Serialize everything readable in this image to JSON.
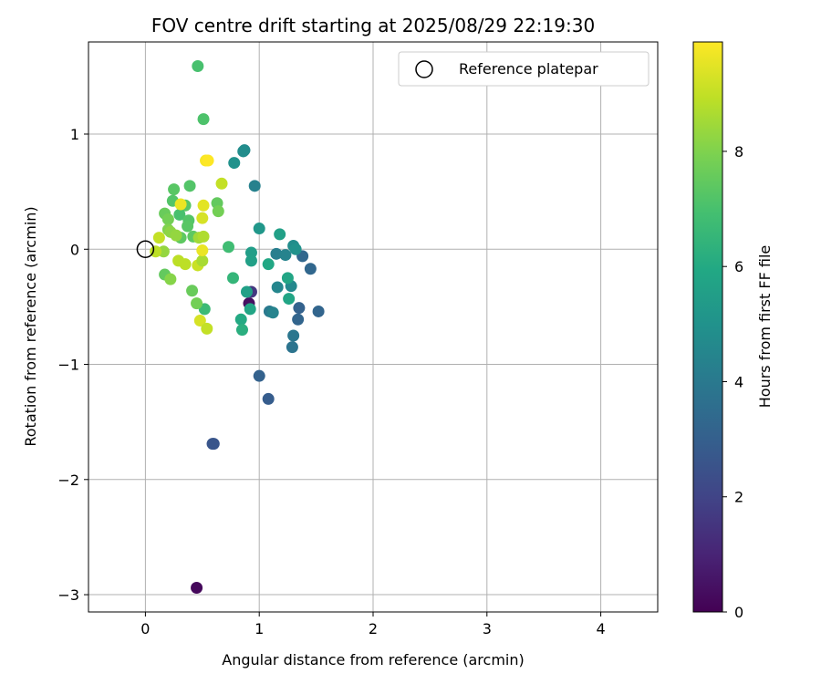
{
  "chart_data": {
    "type": "scatter",
    "title": "FOV centre drift starting at 2025/08/29 22:19:30",
    "xlabel": "Angular distance from reference (arcmin)",
    "ylabel": "Rotation from reference (arcmin)",
    "xlim": [
      -0.5,
      4.5
    ],
    "ylim": [
      -3.15,
      1.8
    ],
    "xticks": [
      0,
      1,
      2,
      3,
      4
    ],
    "xtick_labels": [
      "0",
      "1",
      "2",
      "3",
      "4"
    ],
    "yticks": [
      -3,
      -2,
      -1,
      0,
      1
    ],
    "ytick_labels": [
      "−3",
      "−2",
      "−1",
      "0",
      "1"
    ],
    "grid": true,
    "legend": {
      "placement": "top-right",
      "entries": [
        "Reference platepar"
      ]
    },
    "reference_point": {
      "x": 0,
      "y": 0
    },
    "colorbar": {
      "label": "Hours from first FF file",
      "colormap": "viridis",
      "range": [
        0,
        9.9
      ],
      "ticks": [
        0,
        2,
        4,
        6,
        8
      ],
      "tick_labels": [
        "0",
        "2",
        "4",
        "6",
        "8"
      ]
    },
    "points": [
      {
        "x": 0.45,
        "y": -2.94,
        "c": 0.2
      },
      {
        "x": 0.91,
        "y": -0.47,
        "c": 0.4
      },
      {
        "x": 0.93,
        "y": -0.37,
        "c": 1.6
      },
      {
        "x": 0.6,
        "y": -1.69,
        "c": 2.6
      },
      {
        "x": 0.59,
        "y": -1.69,
        "c": 2.6
      },
      {
        "x": 1.08,
        "y": -1.3,
        "c": 2.9
      },
      {
        "x": 1.0,
        "y": -1.1,
        "c": 3.1
      },
      {
        "x": 1.52,
        "y": -0.54,
        "c": 3.2
      },
      {
        "x": 1.34,
        "y": -0.61,
        "c": 3.2
      },
      {
        "x": 1.35,
        "y": -0.51,
        "c": 3.1
      },
      {
        "x": 1.45,
        "y": -0.17,
        "c": 3.3
      },
      {
        "x": 1.38,
        "y": -0.06,
        "c": 3.3
      },
      {
        "x": 1.29,
        "y": -0.85,
        "c": 3.8
      },
      {
        "x": 1.3,
        "y": -0.75,
        "c": 3.9
      },
      {
        "x": 1.09,
        "y": -0.54,
        "c": 4.0
      },
      {
        "x": 1.12,
        "y": -0.55,
        "c": 4.4
      },
      {
        "x": 1.15,
        "y": -0.04,
        "c": 4.2
      },
      {
        "x": 1.16,
        "y": -0.33,
        "c": 4.5
      },
      {
        "x": 1.23,
        "y": -0.05,
        "c": 4.4
      },
      {
        "x": 1.28,
        "y": -0.32,
        "c": 4.6
      },
      {
        "x": 1.3,
        "y": 0.03,
        "c": 4.8
      },
      {
        "x": 1.32,
        "y": 0.0,
        "c": 5.0
      },
      {
        "x": 0.96,
        "y": 0.55,
        "c": 4.3
      },
      {
        "x": 0.87,
        "y": 0.86,
        "c": 4.7
      },
      {
        "x": 0.86,
        "y": 0.85,
        "c": 4.8
      },
      {
        "x": 0.78,
        "y": 0.75,
        "c": 5.0
      },
      {
        "x": 1.0,
        "y": 0.18,
        "c": 5.2
      },
      {
        "x": 1.18,
        "y": 0.13,
        "c": 5.6
      },
      {
        "x": 1.25,
        "y": -0.25,
        "c": 5.8
      },
      {
        "x": 1.26,
        "y": -0.43,
        "c": 5.8
      },
      {
        "x": 1.08,
        "y": -0.13,
        "c": 5.9
      },
      {
        "x": 0.93,
        "y": -0.03,
        "c": 5.5
      },
      {
        "x": 0.93,
        "y": -0.1,
        "c": 5.6
      },
      {
        "x": 0.89,
        "y": -0.37,
        "c": 5.6
      },
      {
        "x": 0.92,
        "y": -0.52,
        "c": 5.8
      },
      {
        "x": 0.84,
        "y": -0.61,
        "c": 6.0
      },
      {
        "x": 0.85,
        "y": -0.7,
        "c": 6.2
      },
      {
        "x": 0.77,
        "y": -0.25,
        "c": 6.5
      },
      {
        "x": 0.73,
        "y": 0.02,
        "c": 6.8
      },
      {
        "x": 0.52,
        "y": -0.52,
        "c": 6.7
      },
      {
        "x": 0.46,
        "y": 1.59,
        "c": 7.0
      },
      {
        "x": 0.51,
        "y": 1.13,
        "c": 7.1
      },
      {
        "x": 0.63,
        "y": 0.4,
        "c": 7.5
      },
      {
        "x": 0.64,
        "y": 0.33,
        "c": 7.8
      },
      {
        "x": 0.39,
        "y": 0.55,
        "c": 7.2
      },
      {
        "x": 0.25,
        "y": 0.52,
        "c": 7.3
      },
      {
        "x": 0.24,
        "y": 0.42,
        "c": 7.2
      },
      {
        "x": 0.35,
        "y": 0.38,
        "c": 7.3
      },
      {
        "x": 0.3,
        "y": 0.3,
        "c": 7.0
      },
      {
        "x": 0.38,
        "y": 0.25,
        "c": 7.2
      },
      {
        "x": 0.37,
        "y": 0.2,
        "c": 7.3
      },
      {
        "x": 0.31,
        "y": 0.1,
        "c": 7.4
      },
      {
        "x": 0.42,
        "y": 0.11,
        "c": 7.4
      },
      {
        "x": 0.17,
        "y": 0.31,
        "c": 7.6
      },
      {
        "x": 0.2,
        "y": 0.26,
        "c": 7.8
      },
      {
        "x": 0.2,
        "y": 0.17,
        "c": 8.0
      },
      {
        "x": 0.22,
        "y": 0.15,
        "c": 8.2
      },
      {
        "x": 0.27,
        "y": 0.12,
        "c": 8.3
      },
      {
        "x": 0.17,
        "y": -0.22,
        "c": 7.5
      },
      {
        "x": 0.41,
        "y": -0.36,
        "c": 7.6
      },
      {
        "x": 0.45,
        "y": -0.47,
        "c": 7.8
      },
      {
        "x": 0.22,
        "y": -0.26,
        "c": 8.1
      },
      {
        "x": 0.16,
        "y": -0.02,
        "c": 8.3
      },
      {
        "x": 0.12,
        "y": 0.1,
        "c": 9.0
      },
      {
        "x": 0.09,
        "y": -0.02,
        "c": 8.9
      },
      {
        "x": 0.29,
        "y": -0.1,
        "c": 8.9
      },
      {
        "x": 0.35,
        "y": -0.13,
        "c": 8.9
      },
      {
        "x": 0.46,
        "y": -0.14,
        "c": 9.1
      },
      {
        "x": 0.5,
        "y": -0.1,
        "c": 8.6
      },
      {
        "x": 0.47,
        "y": 0.1,
        "c": 8.5
      },
      {
        "x": 0.51,
        "y": 0.11,
        "c": 8.7
      },
      {
        "x": 0.67,
        "y": 0.57,
        "c": 9.0
      },
      {
        "x": 0.5,
        "y": 0.27,
        "c": 9.3
      },
      {
        "x": 0.51,
        "y": 0.38,
        "c": 9.5
      },
      {
        "x": 0.31,
        "y": 0.39,
        "c": 9.6
      },
      {
        "x": 0.53,
        "y": 0.77,
        "c": 9.8
      },
      {
        "x": 0.55,
        "y": 0.77,
        "c": 9.9
      },
      {
        "x": 0.5,
        "y": -0.01,
        "c": 9.6
      },
      {
        "x": 0.48,
        "y": -0.62,
        "c": 9.3
      },
      {
        "x": 0.54,
        "y": -0.69,
        "c": 9.0
      }
    ]
  }
}
